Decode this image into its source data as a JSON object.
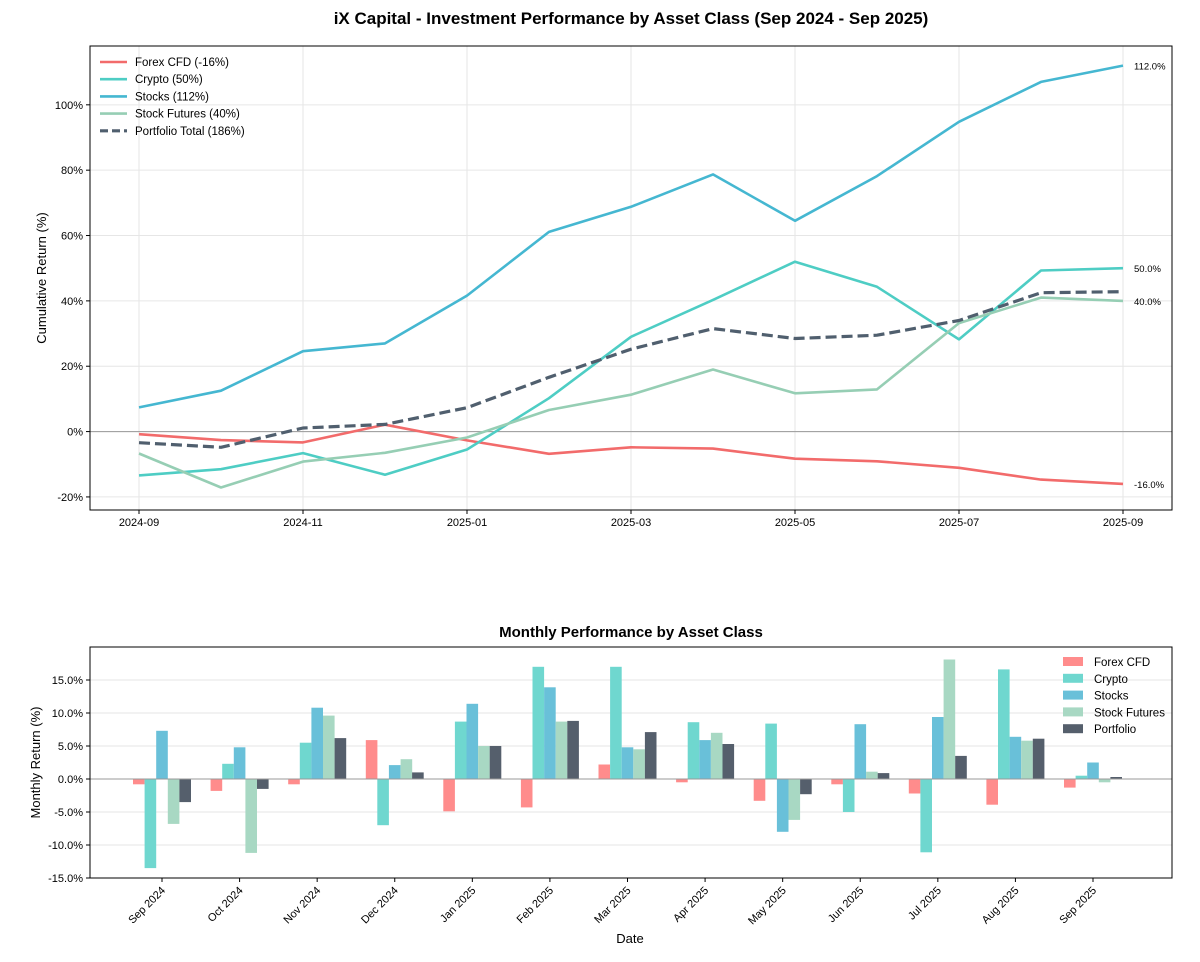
{
  "chart_data": [
    {
      "type": "line",
      "title": "iX Capital - Investment Performance by Asset Class (Sep 2024 - Sep 2025)",
      "xlabel": "",
      "ylabel": "Cumulative Return (%)",
      "x": [
        "2024-09",
        "2024-10",
        "2024-11",
        "2024-12",
        "2025-01",
        "2025-02",
        "2025-03",
        "2025-04",
        "2025-05",
        "2025-06",
        "2025-07",
        "2025-08",
        "2025-09"
      ],
      "x_ticks": [
        "2024-09",
        "2024-11",
        "2025-01",
        "2025-03",
        "2025-05",
        "2025-07",
        "2025-09"
      ],
      "y_ticks": [
        "-20%",
        "0%",
        "20%",
        "40%",
        "60%",
        "80%",
        "100%"
      ],
      "ylim": [
        -24,
        118
      ],
      "grid": true,
      "legend_position": "top-left",
      "series": [
        {
          "name": "Forex CFD (-16%)",
          "color": "#f26b6b",
          "style": "solid",
          "values": [
            -0.8,
            -2.6,
            -3.3,
            2.1,
            -2.7,
            -6.8,
            -4.8,
            -5.2,
            -8.3,
            -9.1,
            -11.1,
            -14.7,
            -16.0
          ],
          "end_label": "-16.0%"
        },
        {
          "name": "Crypto (50%)",
          "color": "#4ecdc4",
          "style": "solid",
          "values": [
            -13.4,
            -11.5,
            -6.6,
            -13.2,
            -5.5,
            10.2,
            29.0,
            40.3,
            52.0,
            44.3,
            28.2,
            49.3,
            50.0
          ],
          "end_label": "50.0%"
        },
        {
          "name": "Stocks (112%)",
          "color": "#45b7d1",
          "style": "solid",
          "values": [
            7.4,
            12.5,
            24.6,
            27.0,
            41.6,
            61.1,
            68.8,
            78.7,
            64.5,
            78.2,
            94.8,
            107.0,
            112.0
          ],
          "end_label": "112.0%"
        },
        {
          "name": "Stock Futures (40%)",
          "color": "#96ceb4",
          "style": "solid",
          "values": [
            -6.7,
            -17.1,
            -9.2,
            -6.5,
            -1.8,
            6.6,
            11.3,
            19.0,
            11.7,
            12.9,
            33.2,
            41.0,
            40.0
          ],
          "end_label": "40.0%"
        },
        {
          "name": "Portfolio Total (186%)",
          "color": "#505f6e",
          "style": "dashed",
          "values": [
            -3.4,
            -4.8,
            1.1,
            2.2,
            7.3,
            16.6,
            25.2,
            31.5,
            28.5,
            29.5,
            34.0,
            42.5,
            42.8
          ],
          "end_label": ""
        }
      ]
    },
    {
      "type": "bar",
      "title": "Monthly Performance by Asset Class",
      "xlabel": "Date",
      "ylabel": "Monthly Return (%)",
      "categories": [
        "Sep 2024",
        "Oct 2024",
        "Nov 2024",
        "Dec 2024",
        "Jan 2025",
        "Feb 2025",
        "Mar 2025",
        "Apr 2025",
        "May 2025",
        "Jun 2025",
        "Jul 2025",
        "Aug 2025",
        "Sep 2025"
      ],
      "y_ticks": [
        "-15.0%",
        "-10.0%",
        "-5.0%",
        "0.0%",
        "5.0%",
        "10.0%",
        "15.0%"
      ],
      "ylim": [
        -15,
        20
      ],
      "grid": true,
      "legend_position": "top-right",
      "series": [
        {
          "name": "Forex CFD",
          "color": "#ff8c8c",
          "values": [
            -0.8,
            -1.8,
            -0.8,
            5.9,
            -4.9,
            -4.3,
            2.2,
            -0.5,
            -3.3,
            -0.8,
            -2.2,
            -3.9,
            -1.3
          ]
        },
        {
          "name": "Crypto",
          "color": "#6fd7cf",
          "values": [
            -13.5,
            2.3,
            5.5,
            -7.0,
            8.7,
            17.0,
            17.0,
            8.6,
            8.4,
            -5.0,
            -11.1,
            16.6,
            0.5
          ]
        },
        {
          "name": "Stocks",
          "color": "#69c0d9",
          "values": [
            7.3,
            4.8,
            10.8,
            2.1,
            11.4,
            13.9,
            4.8,
            5.9,
            -8.0,
            8.3,
            9.4,
            6.4,
            2.5
          ]
        },
        {
          "name": "Stock Futures",
          "color": "#a8d8c3",
          "values": [
            -6.8,
            -11.2,
            9.6,
            3.0,
            5.0,
            8.7,
            4.5,
            7.0,
            -6.2,
            1.1,
            18.1,
            5.8,
            -0.5
          ]
        },
        {
          "name": "Portfolio",
          "color": "#555f6c",
          "values": [
            -3.5,
            -1.5,
            6.2,
            1.0,
            5.0,
            8.8,
            7.1,
            5.3,
            -2.3,
            0.9,
            3.5,
            6.1,
            0.3
          ]
        }
      ]
    }
  ]
}
